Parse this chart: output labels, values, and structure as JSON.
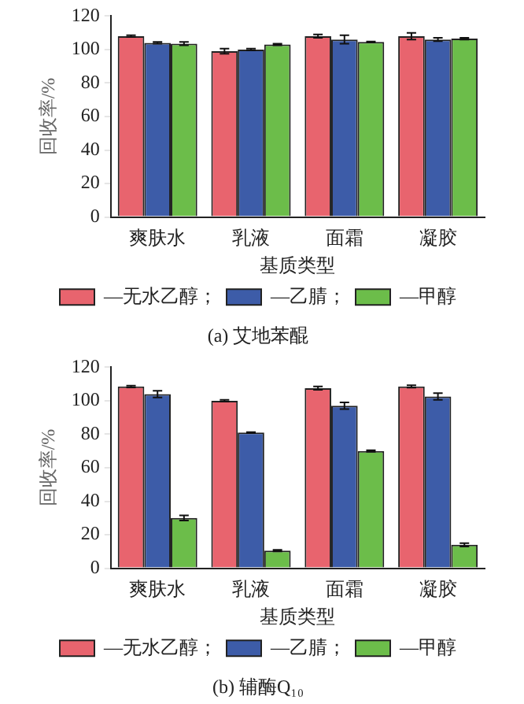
{
  "chart_data": [
    {
      "type": "bar",
      "title": "(a) 艾地苯醌",
      "xlabel": "基质类型",
      "ylabel": "回收率/%",
      "categories": [
        "爽肤水",
        "乳液",
        "面霜",
        "凝胶"
      ],
      "ylim": [
        0,
        120
      ],
      "yticks": [
        0,
        20,
        40,
        60,
        80,
        100,
        120
      ],
      "grid": false,
      "legend": "bottom",
      "series": [
        {
          "name": "—无水乙醇；",
          "color": "#e8646e",
          "values": [
            108,
            99,
            108,
            108
          ],
          "errors": [
            0.5,
            1.5,
            1,
            2
          ]
        },
        {
          "name": "—乙腈；",
          "color": "#3d5ca8",
          "values": [
            104,
            100,
            106,
            106
          ],
          "errors": [
            0.5,
            0.5,
            2.5,
            1
          ]
        },
        {
          "name": "—甲醇",
          "color": "#6cbd4a",
          "values": [
            103.5,
            103,
            104.5,
            106.5
          ],
          "errors": [
            1,
            0.5,
            0.3,
            0.5
          ]
        }
      ]
    },
    {
      "type": "bar",
      "title": "(b) 辅酶Q₁₀",
      "xlabel": "基质类型",
      "ylabel": "回收率/%",
      "categories": [
        "爽肤水",
        "乳液",
        "面霜",
        "凝胶"
      ],
      "ylim": [
        0,
        120
      ],
      "yticks": [
        0,
        20,
        40,
        60,
        80,
        100,
        120
      ],
      "grid": false,
      "legend": "bottom",
      "series": [
        {
          "name": "—无水乙醇；",
          "color": "#e8646e",
          "values": [
            108.5,
            100,
            107.5,
            108.5
          ],
          "errors": [
            0.5,
            0.5,
            1,
            0.7
          ]
        },
        {
          "name": "—乙腈；",
          "color": "#3d5ca8",
          "values": [
            104,
            81,
            97,
            102.5
          ],
          "errors": [
            2,
            0.3,
            2,
            2
          ]
        },
        {
          "name": "—甲醇",
          "color": "#6cbd4a",
          "values": [
            30,
            10.5,
            70,
            14
          ],
          "errors": [
            1.5,
            0.5,
            0.5,
            1
          ]
        }
      ]
    }
  ]
}
